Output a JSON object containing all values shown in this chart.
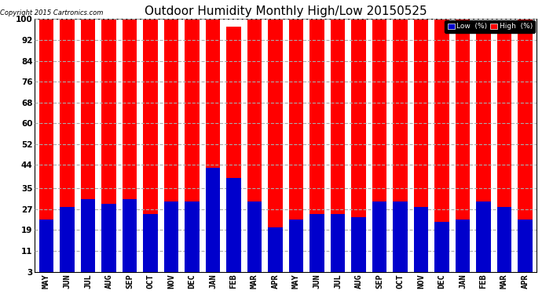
{
  "title": "Outdoor Humidity Monthly High/Low 20150525",
  "copyright": "Copyright 2015 Cartronics.com",
  "background_color": "#ffffff",
  "high_color": "#ff0000",
  "low_color": "#0000cc",
  "months": [
    "MAY",
    "JUN",
    "JUL",
    "AUG",
    "SEP",
    "OCT",
    "NOV",
    "DEC",
    "JAN",
    "FEB",
    "MAR",
    "APR",
    "MAY",
    "JUN",
    "JUL",
    "AUG",
    "SEP",
    "OCT",
    "NOV",
    "DEC",
    "JAN",
    "FEB",
    "MAR",
    "APR"
  ],
  "high_values": [
    100,
    100,
    100,
    100,
    100,
    100,
    100,
    100,
    100,
    94,
    100,
    100,
    100,
    100,
    100,
    100,
    100,
    100,
    100,
    100,
    97,
    93,
    96,
    100
  ],
  "low_values": [
    20,
    25,
    28,
    26,
    28,
    22,
    27,
    27,
    40,
    36,
    27,
    17,
    20,
    22,
    22,
    21,
    27,
    27,
    25,
    19,
    20,
    27,
    25,
    20
  ],
  "yticks": [
    3,
    11,
    19,
    27,
    35,
    44,
    52,
    60,
    68,
    76,
    84,
    92,
    100
  ],
  "ymin": 3,
  "ymax": 100,
  "grid_color": "#aaaaaa",
  "grid_style": "--",
  "legend_low_label": "Low  (%)",
  "legend_high_label": "High  (%)",
  "title_fontsize": 11,
  "tick_fontsize": 7.5,
  "bar_width": 0.7,
  "figwidth": 6.9,
  "figheight": 3.75,
  "dpi": 100
}
